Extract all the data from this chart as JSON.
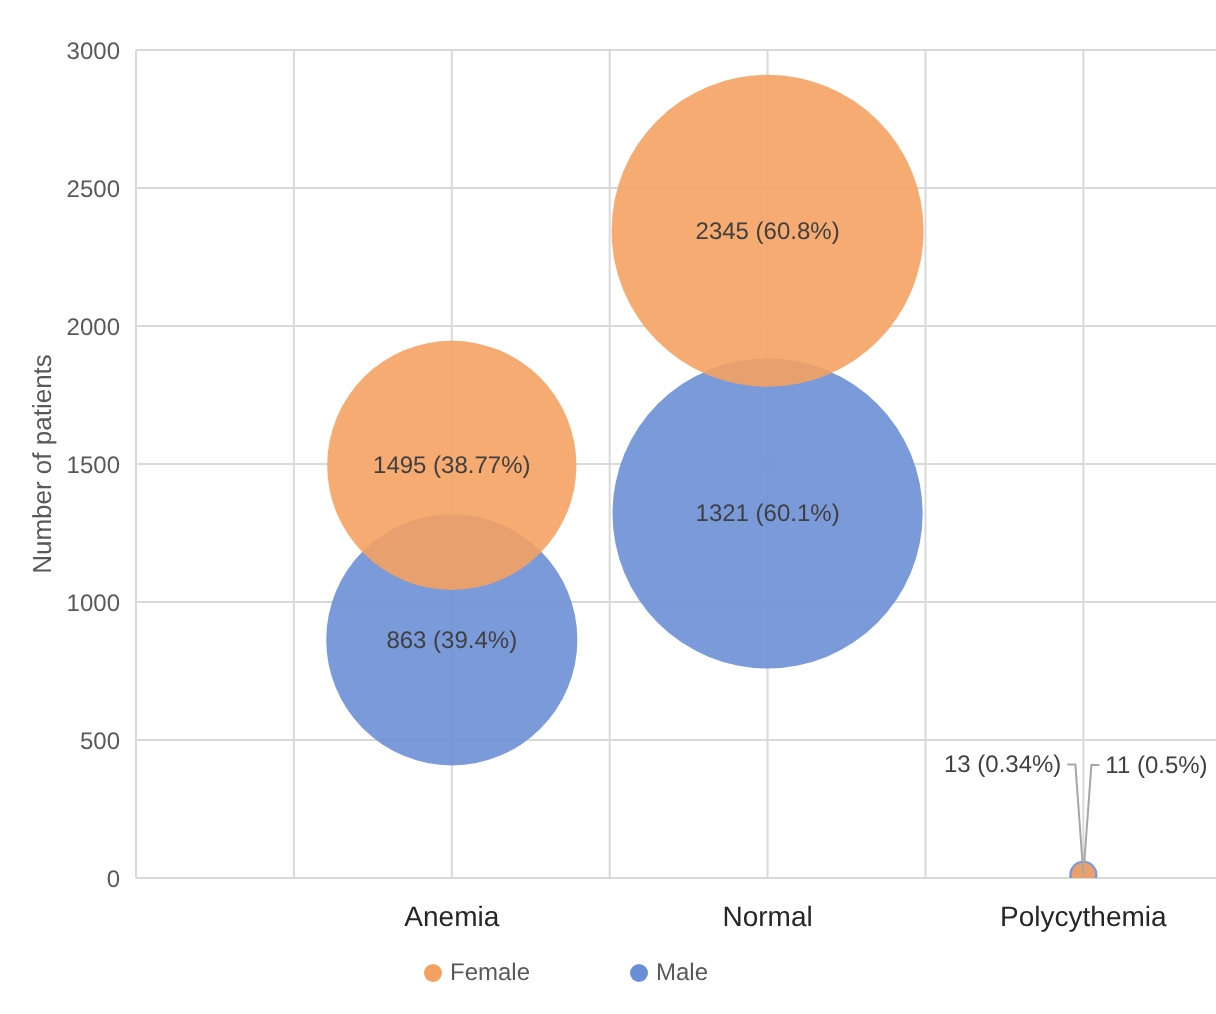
{
  "chart_data": {
    "type": "bubble",
    "ylabel": "Number of patients",
    "categories": [
      "Anemia",
      "Normal",
      "Polycythemia"
    ],
    "ylim": [
      0,
      3000
    ],
    "yticks": [
      0,
      500,
      1000,
      1500,
      2000,
      2500,
      3000
    ],
    "grid": true,
    "legend": "bottom",
    "series": [
      {
        "name": "Male",
        "color": "#6b8fd6",
        "values": [
          863,
          1321,
          11
        ],
        "sizes": [
          0.648,
          0.988,
          0.0082
        ],
        "value_labels": [
          "863 (39.4%)",
          "1321 (60.1%)",
          "11 (0.5%)"
        ]
      },
      {
        "name": "Female",
        "color": "#f4a262",
        "values": [
          1495,
          2345,
          13
        ],
        "sizes": [
          0.638,
          1,
          0.0056
        ],
        "value_labels": [
          "1495 (38.77%)",
          "2345 (60.8%)",
          "13 (0.34%)"
        ]
      }
    ]
  }
}
